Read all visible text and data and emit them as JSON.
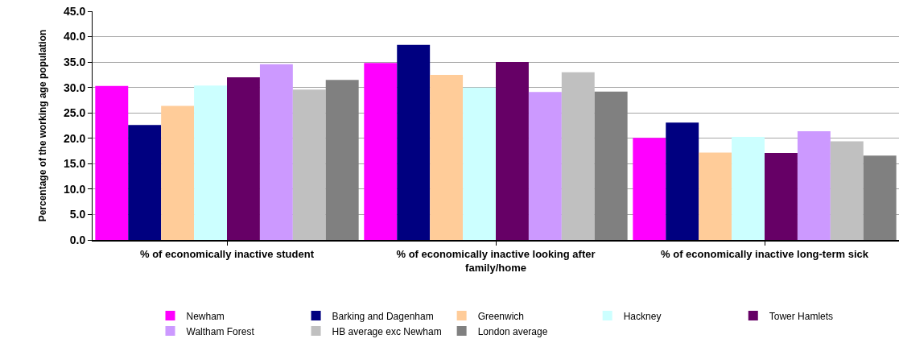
{
  "chart_data": {
    "type": "bar",
    "ylabel": "Percentage of the working age population",
    "categories": [
      "% of economically inactive student",
      "% of economically inactive looking after family/home",
      "% of economically inactive long-term sick"
    ],
    "series": [
      {
        "name": "Newham",
        "color": "#ff00ff",
        "values": [
          30.3,
          34.8,
          20.1
        ]
      },
      {
        "name": "Barking and Dagenham",
        "color": "#000080",
        "values": [
          22.6,
          38.4,
          23.1
        ]
      },
      {
        "name": "Greenwich",
        "color": "#ffcc99",
        "values": [
          26.4,
          32.5,
          17.2
        ]
      },
      {
        "name": "Hackney",
        "color": "#ccffff",
        "values": [
          30.4,
          30.0,
          20.3
        ]
      },
      {
        "name": "Tower Hamlets",
        "color": "#660066",
        "values": [
          32.0,
          35.0,
          17.1
        ]
      },
      {
        "name": "Waltham Forest",
        "color": "#cc99ff",
        "values": [
          34.6,
          29.1,
          21.4
        ]
      },
      {
        "name": "HB average exc Newham",
        "color": "#c0c0c0",
        "values": [
          29.6,
          33.0,
          19.4
        ]
      },
      {
        "name": "London average",
        "color": "#808080",
        "values": [
          31.5,
          29.2,
          16.6
        ]
      }
    ],
    "ylim": [
      0,
      45
    ],
    "yticks": [
      {
        "value": 0,
        "label": "0.0"
      },
      {
        "value": 5,
        "label": "5.0"
      },
      {
        "value": 10,
        "label": "10.0"
      },
      {
        "value": 15,
        "label": "15.0"
      },
      {
        "value": 20,
        "label": "20.0"
      },
      {
        "value": 25,
        "label": "25.0"
      },
      {
        "value": 30,
        "label": "30.0"
      },
      {
        "value": 35,
        "label": "35.0"
      },
      {
        "value": 40,
        "label": "40.0"
      },
      {
        "value": 45,
        "label": "45.0"
      }
    ],
    "grid": "y",
    "legend": "bottom"
  }
}
